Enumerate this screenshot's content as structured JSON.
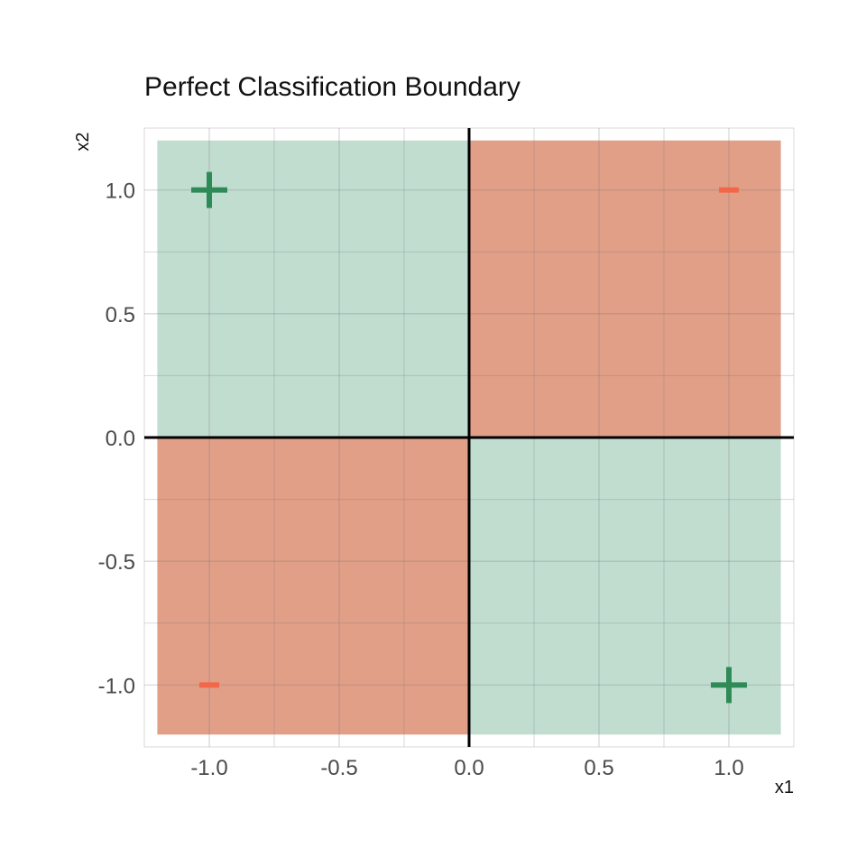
{
  "chart_data": {
    "type": "scatter",
    "title": "Perfect Classification Boundary",
    "xlabel": "x1",
    "ylabel": "x2",
    "xlim": [
      -1.25,
      1.25
    ],
    "ylim": [
      -1.25,
      1.25
    ],
    "x_ticks": [
      -1.0,
      -0.5,
      0.0,
      0.5,
      1.0
    ],
    "y_ticks": [
      -1.0,
      -0.5,
      0.0,
      0.5,
      1.0
    ],
    "x_tick_labels": [
      "-1.0",
      "-0.5",
      "0.0",
      "0.5",
      "1.0"
    ],
    "y_tick_labels": [
      "-1.0",
      "-0.5",
      "0.0",
      "0.5",
      "1.0"
    ],
    "grid": true,
    "legend": "none",
    "regions": [
      {
        "x_range": [
          -1.2,
          0
        ],
        "y_range": [
          0,
          1.2
        ],
        "class": "positive",
        "color": "#c1ddd0"
      },
      {
        "x_range": [
          0,
          1.2
        ],
        "y_range": [
          0,
          1.2
        ],
        "class": "negative",
        "color": "#e19f87"
      },
      {
        "x_range": [
          -1.2,
          0
        ],
        "y_range": [
          -1.2,
          0
        ],
        "class": "negative",
        "color": "#e19f87"
      },
      {
        "x_range": [
          0,
          1.2
        ],
        "y_range": [
          -1.2,
          0
        ],
        "class": "positive",
        "color": "#c1ddd0"
      }
    ],
    "points": [
      {
        "x": -1,
        "y": 1,
        "class": "positive",
        "marker": "plus",
        "color": "#2e8b57"
      },
      {
        "x": 1,
        "y": 1,
        "class": "negative",
        "marker": "minus",
        "color": "#f26749"
      },
      {
        "x": -1,
        "y": -1,
        "class": "negative",
        "marker": "minus",
        "color": "#f26749"
      },
      {
        "x": 1,
        "y": -1,
        "class": "positive",
        "marker": "plus",
        "color": "#2e8b57"
      }
    ],
    "reference_lines": {
      "x": 0,
      "y": 0,
      "color": "#000000"
    }
  }
}
